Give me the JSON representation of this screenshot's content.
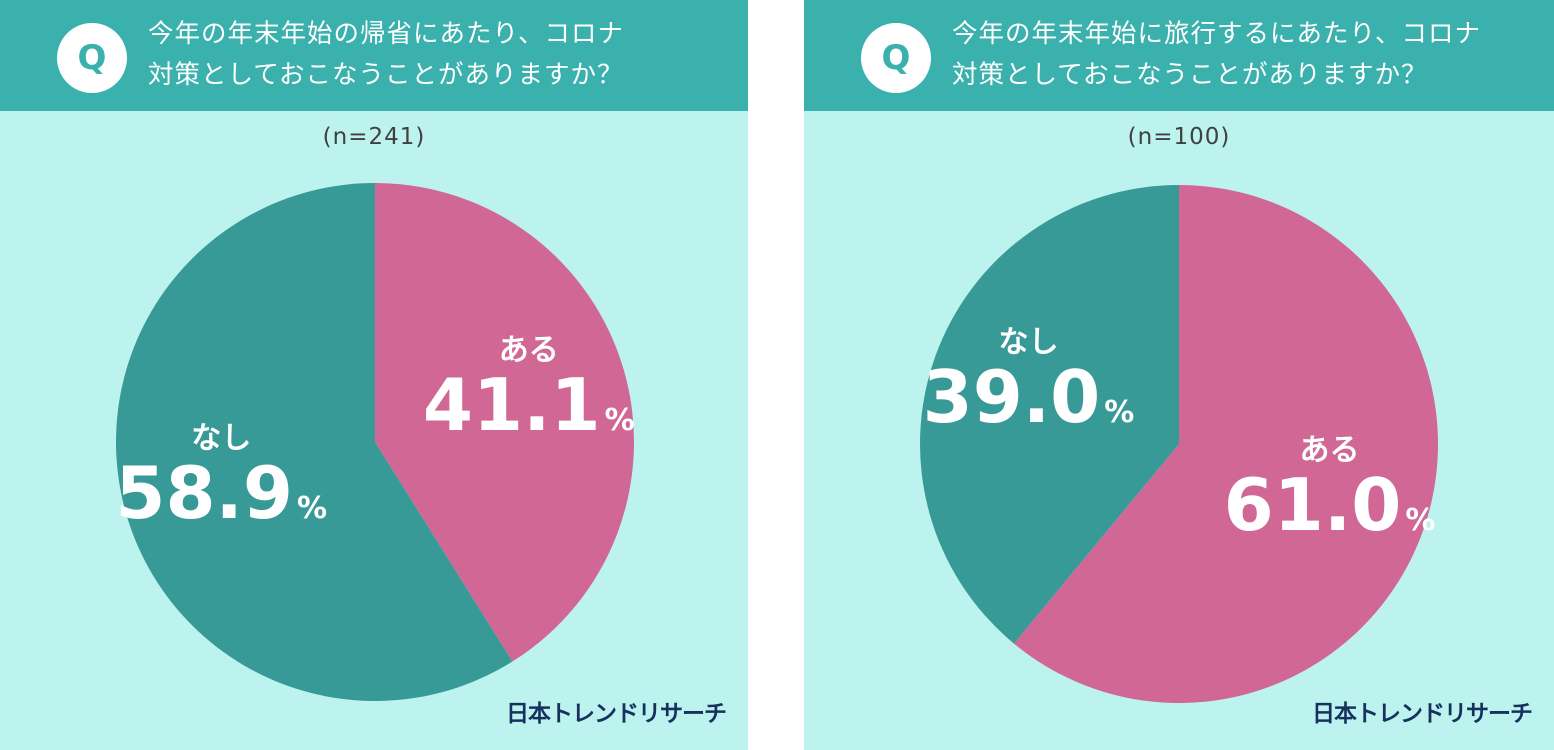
{
  "colors": {
    "header": "#3ab1ad",
    "background": "#bdf3ee",
    "slice_yes": "#d06795",
    "slice_no": "#389a97",
    "label_text": "#ffffff",
    "brand_text": "#17305e"
  },
  "brand": "日本トレンドリサーチ",
  "q_badge": "Q",
  "chart_data": [
    {
      "type": "pie",
      "title": "今年の年末年始の帰省にあたり、コロナ対策としておこなうことがありますか？",
      "title_lines": [
        "今年の年末年始の帰省にあたり、コロナ",
        "対策としておこなうことがありますか？"
      ],
      "sample": "(n=241)",
      "slices": [
        {
          "label": "ある",
          "value": 41.1,
          "value_text": "41.1",
          "unit": "%"
        },
        {
          "label": "なし",
          "value": 58.9,
          "value_text": "58.9",
          "unit": "%"
        }
      ]
    },
    {
      "type": "pie",
      "title": "今年の年末年始に旅行するにあたり、コロナ対策としておこなうことがありますか？",
      "title_lines": [
        "今年の年末年始に旅行するにあたり、コロナ",
        "対策としておこなうことがありますか？"
      ],
      "sample": "(n=100)",
      "slices": [
        {
          "label": "ある",
          "value": 61.0,
          "value_text": "61.0",
          "unit": "%"
        },
        {
          "label": "なし",
          "value": 39.0,
          "value_text": "39.0",
          "unit": "%"
        }
      ]
    }
  ]
}
